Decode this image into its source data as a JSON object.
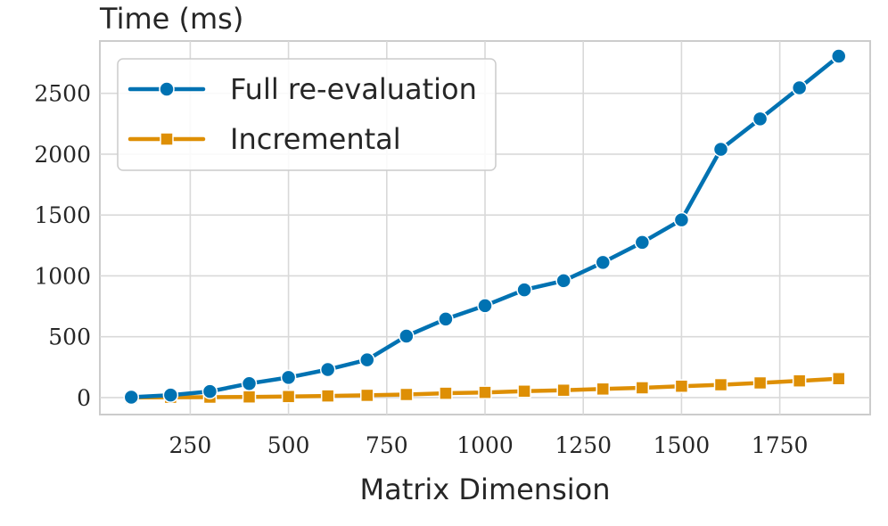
{
  "chart_data": {
    "type": "line",
    "title": "Time (ms)",
    "xlabel": "Matrix Dimension",
    "ylabel": "",
    "xlim": [
      20,
      1980
    ],
    "ylim": [
      -140,
      2930
    ],
    "xticks": [
      250,
      500,
      750,
      1000,
      1250,
      1500,
      1750
    ],
    "yticks": [
      0,
      500,
      1000,
      1500,
      2000,
      2500
    ],
    "grid": true,
    "legend_position": "top-left",
    "series": [
      {
        "name": "Full re-evaluation",
        "color": "#0072b2",
        "marker": "circle",
        "x": [
          100,
          200,
          300,
          400,
          500,
          600,
          700,
          800,
          900,
          1000,
          1100,
          1200,
          1300,
          1400,
          1500,
          1600,
          1700,
          1800,
          1900
        ],
        "values": [
          3,
          20,
          50,
          115,
          165,
          230,
          310,
          505,
          645,
          755,
          885,
          960,
          1110,
          1275,
          1460,
          2040,
          2290,
          2545,
          2805
        ]
      },
      {
        "name": "Incremental",
        "color": "#de8f05",
        "marker": "square",
        "x": [
          100,
          200,
          300,
          400,
          500,
          600,
          700,
          800,
          900,
          1000,
          1100,
          1200,
          1300,
          1400,
          1500,
          1600,
          1700,
          1800,
          1900
        ],
        "values": [
          0,
          2,
          3,
          5,
          8,
          13,
          18,
          25,
          35,
          42,
          52,
          60,
          70,
          80,
          93,
          105,
          120,
          137,
          155
        ]
      }
    ]
  }
}
